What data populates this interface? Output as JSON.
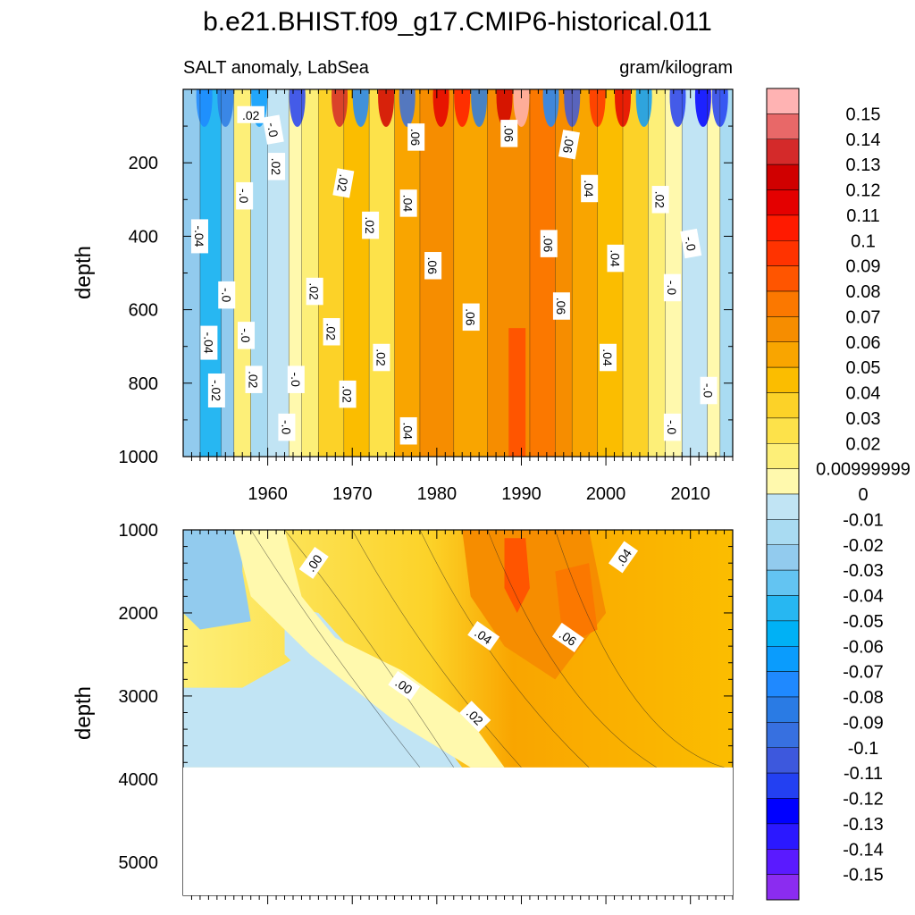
{
  "chart_data": {
    "type": "heatmap",
    "title": "b.e21.BHIST.f09_g17.CMIP6-historical.011",
    "left_subtitle": "SALT anomaly, LabSea",
    "right_subtitle": "gram/kilogram",
    "x_range": [
      1950,
      2015
    ],
    "x_ticks": [
      "1960",
      "1970",
      "1980",
      "1990",
      "2000",
      "2010"
    ],
    "upper_panel": {
      "ylabel": "depth",
      "ylim": [
        0,
        1000
      ],
      "y_ticks": [
        "200",
        "400",
        "600",
        "800",
        "1000"
      ],
      "contour_labels": [
        {
          "text": "-.0",
          "x": 1960.6,
          "y": 110,
          "angle": 80
        },
        {
          "text": ".02",
          "x": 1961.0,
          "y": 210,
          "angle": 90
        },
        {
          "text": ".02",
          "x": 1958.0,
          "y": 70,
          "angle": 0
        },
        {
          "text": "-.0",
          "x": 1957.2,
          "y": 290,
          "angle": 90
        },
        {
          "text": "-.04",
          "x": 1951.9,
          "y": 400,
          "angle": 90
        },
        {
          "text": ".02",
          "x": 1968.9,
          "y": 255,
          "angle": 100
        },
        {
          "text": ".02",
          "x": 1972.1,
          "y": 370,
          "angle": 90
        },
        {
          "text": ".04",
          "x": 1976.6,
          "y": 310,
          "angle": 90
        },
        {
          "text": ".06",
          "x": 1977.5,
          "y": 130,
          "angle": 90
        },
        {
          "text": ".06",
          "x": 1988.5,
          "y": 120,
          "angle": 90
        },
        {
          "text": ".06",
          "x": 1995.6,
          "y": 150,
          "angle": 100
        },
        {
          "text": ".04",
          "x": 1998.0,
          "y": 270,
          "angle": 90
        },
        {
          "text": ".02",
          "x": 2006.4,
          "y": 300,
          "angle": 90
        },
        {
          "text": ".06",
          "x": 1993.2,
          "y": 420,
          "angle": 90
        },
        {
          "text": ".04",
          "x": 2001.1,
          "y": 460,
          "angle": 90
        },
        {
          "text": "-.0",
          "x": 2010.0,
          "y": 420,
          "angle": 80
        },
        {
          "text": ".06",
          "x": 1979.5,
          "y": 480,
          "angle": 90
        },
        {
          "text": ".02",
          "x": 1965.5,
          "y": 550,
          "angle": 90
        },
        {
          "text": "-.0",
          "x": 1955.1,
          "y": 560,
          "angle": 90
        },
        {
          "text": ".06",
          "x": 1984.0,
          "y": 620,
          "angle": 90
        },
        {
          "text": ".06",
          "x": 1994.7,
          "y": 590,
          "angle": 90
        },
        {
          "text": "-.0",
          "x": 2007.8,
          "y": 540,
          "angle": 90
        },
        {
          "text": ".02",
          "x": 1967.5,
          "y": 660,
          "angle": 90
        },
        {
          "text": "-.0",
          "x": 1957.4,
          "y": 670,
          "angle": 90
        },
        {
          "text": "-.04",
          "x": 1953.0,
          "y": 690,
          "angle": 90
        },
        {
          "text": ".02",
          "x": 1973.4,
          "y": 730,
          "angle": 90
        },
        {
          "text": ".04",
          "x": 2000.2,
          "y": 730,
          "angle": 90
        },
        {
          "text": "-.0",
          "x": 1963.3,
          "y": 790,
          "angle": 90
        },
        {
          "text": ".02",
          "x": 1958.3,
          "y": 790,
          "angle": 90
        },
        {
          "text": "-.02",
          "x": 1953.9,
          "y": 820,
          "angle": 90
        },
        {
          "text": ".02",
          "x": 1969.4,
          "y": 830,
          "angle": 90
        },
        {
          "text": "-.0",
          "x": 2012.1,
          "y": 820,
          "angle": 90
        },
        {
          "text": "-.0",
          "x": 1962.2,
          "y": 920,
          "angle": 90
        },
        {
          "text": ".04",
          "x": 1976.6,
          "y": 930,
          "angle": 90
        },
        {
          "text": "-.0",
          "x": 2007.8,
          "y": 920,
          "angle": 90
        }
      ]
    },
    "lower_panel": {
      "ylabel": "depth",
      "ylim": [
        1000,
        5400
      ],
      "y_ticks": [
        "1000",
        "2000",
        "3000",
        "4000",
        "5000"
      ],
      "data_floor_depth": 3860,
      "contour_labels": [
        {
          "text": ".00",
          "x": 1965.5,
          "y": 1400,
          "angle": -55
        },
        {
          "text": ".04",
          "x": 2002.1,
          "y": 1330,
          "angle": -55
        },
        {
          "text": ".04",
          "x": 1985.5,
          "y": 2280,
          "angle": 35
        },
        {
          "text": ".06",
          "x": 1995.5,
          "y": 2300,
          "angle": 35
        },
        {
          "text": ".00",
          "x": 1976.1,
          "y": 2880,
          "angle": 35
        },
        {
          "text": ".02",
          "x": 1984.5,
          "y": 3250,
          "angle": 45
        }
      ]
    },
    "colorbar": {
      "levels": [
        "0.15",
        "0.14",
        "0.13",
        "0.12",
        "0.11",
        "0.1",
        "0.09",
        "0.08",
        "0.07",
        "0.06",
        "0.05",
        "0.04",
        "0.03",
        "0.02",
        "0.00999999",
        "0",
        "-0.01",
        "-0.02",
        "-0.03",
        "-0.04",
        "-0.05",
        "-0.06",
        "-0.07",
        "-0.08",
        "-0.09",
        "-0.1",
        "-0.11",
        "-0.12",
        "-0.13",
        "-0.14",
        "-0.15"
      ],
      "colors": [
        "#ffb3b3",
        "#e86868",
        "#d42a2a",
        "#d00000",
        "#e40000",
        "#ff1a00",
        "#ff3300",
        "#ff5500",
        "#fb7800",
        "#f68d00",
        "#f9a500",
        "#fbbd00",
        "#fcd228",
        "#fde24a",
        "#fdef78",
        "#fff9ad",
        "#c1e4f4",
        "#a9dbf2",
        "#92cbee",
        "#63c4f2",
        "#27b7f2",
        "#00b1f5",
        "#0a9cfd",
        "#1f89ff",
        "#2a7be4",
        "#3770e0",
        "#3d58dd",
        "#2340f2",
        "#0000ff",
        "#2b18ff",
        "#5a1aff",
        "#8b2cf0"
      ]
    }
  }
}
